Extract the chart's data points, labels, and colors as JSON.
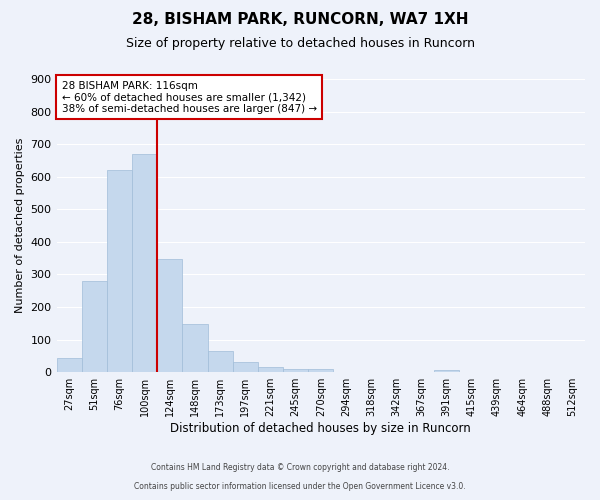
{
  "title": "28, BISHAM PARK, RUNCORN, WA7 1XH",
  "subtitle": "Size of property relative to detached houses in Runcorn",
  "xlabel": "Distribution of detached houses by size in Runcorn",
  "ylabel": "Number of detached properties",
  "bar_color": "#c5d8ed",
  "bar_edge_color": "#a0bdd8",
  "background_color": "#eef2fa",
  "grid_color": "#ffffff",
  "bin_labels": [
    "27sqm",
    "51sqm",
    "76sqm",
    "100sqm",
    "124sqm",
    "148sqm",
    "173sqm",
    "197sqm",
    "221sqm",
    "245sqm",
    "270sqm",
    "294sqm",
    "318sqm",
    "342sqm",
    "367sqm",
    "391sqm",
    "415sqm",
    "439sqm",
    "464sqm",
    "488sqm",
    "512sqm"
  ],
  "bar_heights": [
    44,
    280,
    622,
    670,
    348,
    148,
    65,
    31,
    15,
    10,
    10,
    0,
    0,
    0,
    0,
    8,
    0,
    0,
    0,
    0,
    0
  ],
  "vline_color": "#cc0000",
  "annotation_title": "28 BISHAM PARK: 116sqm",
  "annotation_line1": "← 60% of detached houses are smaller (1,342)",
  "annotation_line2": "38% of semi-detached houses are larger (847) →",
  "annotation_box_color": "#ffffff",
  "annotation_box_edge_color": "#cc0000",
  "ylim": [
    0,
    900
  ],
  "yticks": [
    0,
    100,
    200,
    300,
    400,
    500,
    600,
    700,
    800,
    900
  ],
  "footer_line1": "Contains HM Land Registry data © Crown copyright and database right 2024.",
  "footer_line2": "Contains public sector information licensed under the Open Government Licence v3.0."
}
